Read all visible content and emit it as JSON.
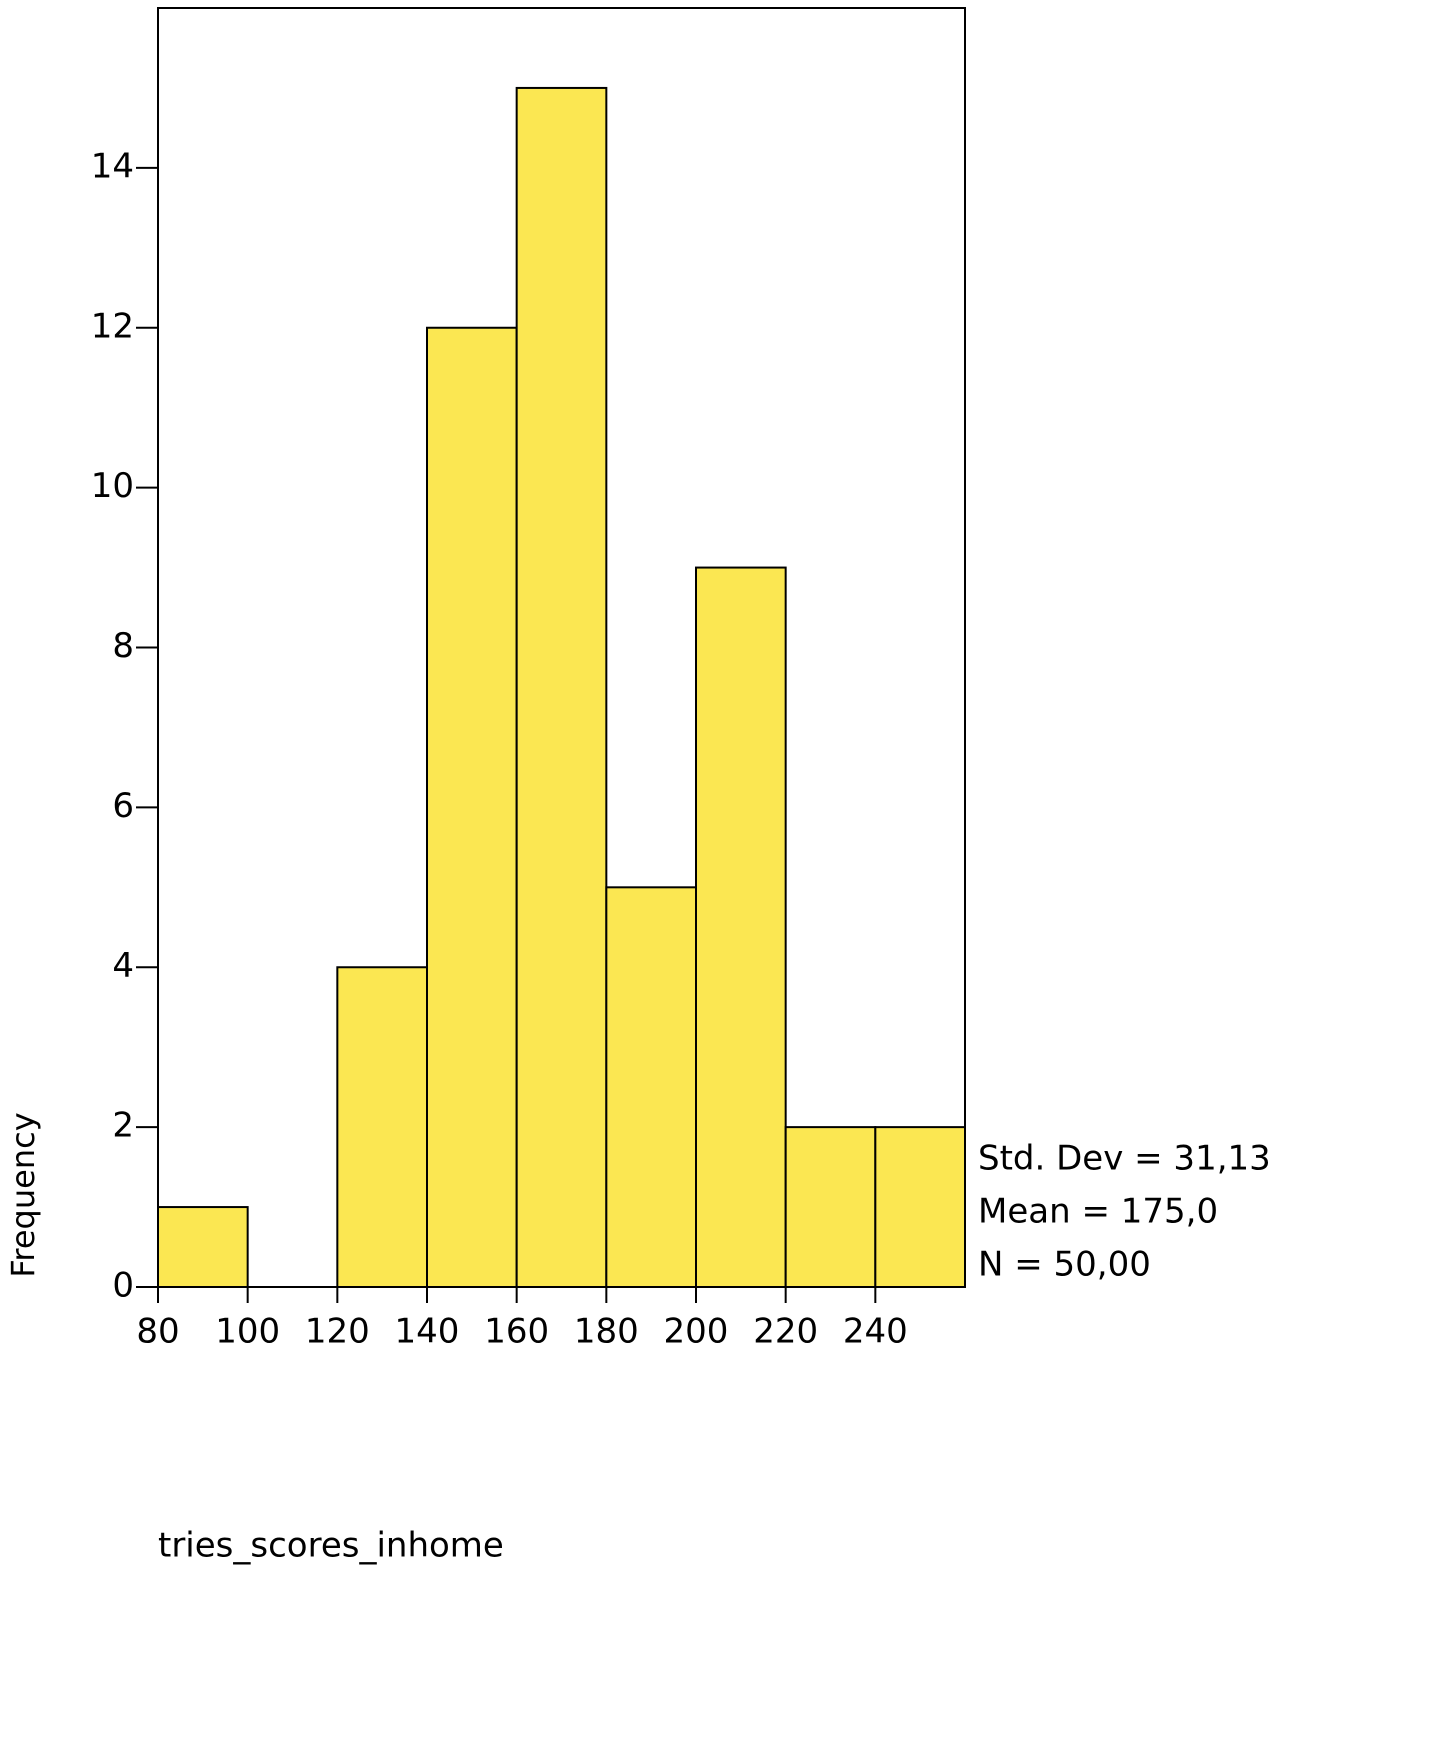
{
  "chart_data": {
    "type": "histogram",
    "x_label": "tries_scores_inhome",
    "y_label": "Frequency",
    "bins": [
      80,
      100,
      120,
      140,
      160,
      180,
      200,
      220,
      240,
      260
    ],
    "values": [
      1,
      0,
      4,
      12,
      15,
      5,
      9,
      2,
      2
    ],
    "color": "#fbe752",
    "xlim": [
      80,
      260
    ],
    "xticks": [
      80,
      100,
      120,
      140,
      160,
      180,
      200,
      220,
      240
    ],
    "ylim": [
      0,
      16
    ],
    "yticks": [
      0,
      2,
      4,
      6,
      8,
      10,
      12,
      14
    ],
    "annotations": [
      "Std. Dev = 31,13",
      "Mean = 175,0",
      "N = 50,00"
    ]
  }
}
